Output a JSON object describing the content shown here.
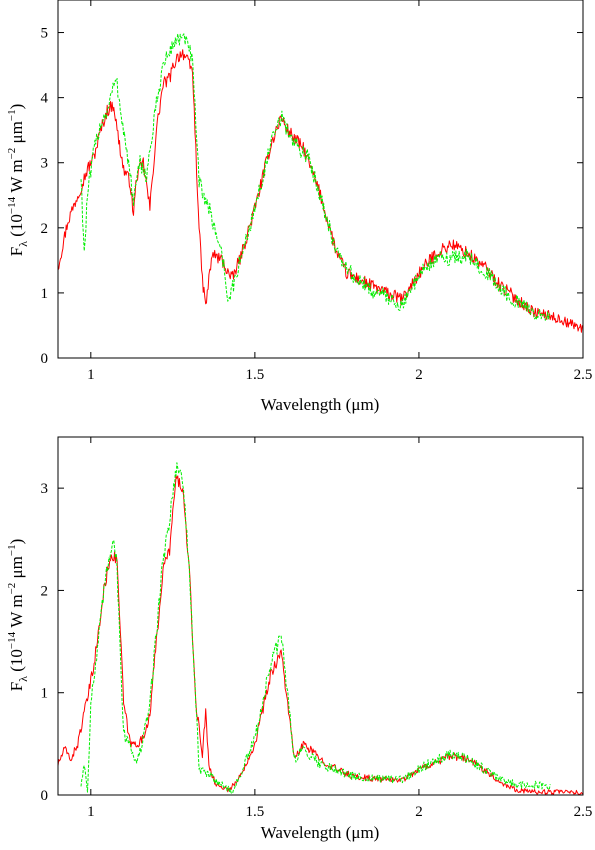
{
  "chart_data": [
    {
      "type": "line",
      "xlabel": "Wavelength (μm)",
      "ylabel_main": "F",
      "ylabel_sub": "λ",
      "ylabel_paren_open": " (10",
      "ylabel_exp1": "−14",
      "ylabel_mid": " W m",
      "ylabel_exp2": "−2",
      "ylabel_unit": " μm",
      "ylabel_exp3": "−1",
      "ylabel_paren_close": ")",
      "xlim": [
        0.9,
        2.5
      ],
      "ylim": [
        0,
        5.5
      ],
      "xticks": [
        1,
        1.5,
        2,
        2.5
      ],
      "xtick_labels": [
        "1",
        "1.5",
        "2",
        "2.5"
      ],
      "yticks": [
        0,
        1,
        2,
        3,
        4,
        5
      ],
      "ytick_labels": [
        "0",
        "1",
        "2",
        "3",
        "4",
        "5"
      ],
      "grid": false,
      "series": [
        {
          "color": "#ff0000",
          "style": "solid",
          "noise": 0.1,
          "x": [
            0.9,
            0.93,
            0.96,
            0.99,
            1.01,
            1.03,
            1.05,
            1.07,
            1.08,
            1.1,
            1.12,
            1.13,
            1.14,
            1.16,
            1.18,
            1.2,
            1.22,
            1.24,
            1.26,
            1.28,
            1.3,
            1.31,
            1.33,
            1.34,
            1.35,
            1.37,
            1.4,
            1.43,
            1.46,
            1.5,
            1.55,
            1.58,
            1.6,
            1.65,
            1.7,
            1.75,
            1.78,
            1.82,
            1.86,
            1.9,
            1.95,
            2.0,
            2.05,
            2.1,
            2.15,
            2.2,
            2.25,
            2.3,
            2.35,
            2.4,
            2.45,
            2.5
          ],
          "y": [
            1.4,
            2.1,
            2.5,
            2.9,
            3.1,
            3.5,
            3.8,
            3.9,
            3.5,
            2.9,
            2.7,
            2.2,
            2.8,
            3.0,
            2.3,
            3.5,
            4.2,
            4.3,
            4.6,
            4.7,
            4.5,
            4.4,
            2.0,
            1.2,
            0.8,
            1.6,
            1.5,
            1.2,
            1.6,
            2.3,
            3.3,
            3.7,
            3.5,
            3.2,
            2.5,
            1.6,
            1.3,
            1.2,
            1.1,
            1.0,
            0.9,
            1.3,
            1.6,
            1.75,
            1.6,
            1.4,
            1.1,
            0.9,
            0.7,
            0.65,
            0.55,
            0.45
          ]
        },
        {
          "color": "#00ee00",
          "style": "dashed",
          "noise": 0.12,
          "x": [
            0.97,
            0.98,
            0.99,
            1.01,
            1.03,
            1.05,
            1.07,
            1.08,
            1.1,
            1.12,
            1.13,
            1.15,
            1.17,
            1.2,
            1.22,
            1.24,
            1.26,
            1.28,
            1.3,
            1.31,
            1.33,
            1.36,
            1.4,
            1.42,
            1.45,
            1.5,
            1.55,
            1.58,
            1.62,
            1.66,
            1.7,
            1.75,
            1.8,
            1.85,
            1.9,
            1.95,
            2.0,
            2.05,
            2.1,
            2.15,
            2.2,
            2.25,
            2.3,
            2.35,
            2.4
          ],
          "y": [
            2.8,
            1.6,
            2.5,
            3.2,
            3.6,
            3.8,
            4.2,
            4.2,
            3.5,
            2.8,
            2.4,
            3.0,
            2.8,
            3.9,
            4.5,
            4.7,
            4.9,
            4.9,
            4.8,
            4.5,
            2.7,
            2.3,
            1.6,
            0.85,
            1.4,
            2.3,
            3.3,
            3.7,
            3.3,
            3.1,
            2.5,
            1.6,
            1.25,
            1.05,
            0.95,
            0.8,
            1.3,
            1.5,
            1.55,
            1.55,
            1.35,
            1.05,
            0.85,
            0.7,
            0.6
          ]
        }
      ]
    },
    {
      "type": "line",
      "xlabel": "Wavelength (μm)",
      "ylabel_main": "F",
      "ylabel_sub": "λ",
      "ylabel_paren_open": " (10",
      "ylabel_exp1": "−14",
      "ylabel_mid": " W m",
      "ylabel_exp2": "−2",
      "ylabel_unit": " μm",
      "ylabel_exp3": "−1",
      "ylabel_paren_close": ")",
      "xlim": [
        0.9,
        2.5
      ],
      "ylim": [
        0,
        3.5
      ],
      "xticks": [
        1,
        1.5,
        2,
        2.5
      ],
      "xtick_labels": [
        "1",
        "1.5",
        "2",
        "2.5"
      ],
      "yticks": [
        0,
        1,
        2,
        3
      ],
      "ytick_labels": [
        "0",
        "1",
        "2",
        "3"
      ],
      "grid": false,
      "series": [
        {
          "color": "#ff0000",
          "style": "solid",
          "noise": 0.06,
          "x": [
            0.9,
            0.92,
            0.94,
            0.96,
            0.98,
            1.0,
            1.02,
            1.04,
            1.06,
            1.08,
            1.1,
            1.12,
            1.14,
            1.16,
            1.18,
            1.2,
            1.22,
            1.24,
            1.26,
            1.28,
            1.3,
            1.32,
            1.34,
            1.35,
            1.36,
            1.38,
            1.4,
            1.42,
            1.45,
            1.5,
            1.55,
            1.58,
            1.6,
            1.62,
            1.65,
            1.7,
            1.75,
            1.8,
            1.9,
            1.95,
            2.0,
            2.05,
            2.1,
            2.15,
            2.2,
            2.25,
            2.3,
            2.35,
            2.4,
            2.5
          ],
          "y": [
            0.3,
            0.45,
            0.35,
            0.5,
            0.8,
            1.1,
            1.5,
            2.0,
            2.35,
            2.3,
            0.9,
            0.5,
            0.5,
            0.55,
            0.8,
            1.5,
            2.2,
            2.4,
            3.1,
            3.0,
            2.2,
            0.9,
            0.4,
            0.8,
            0.3,
            0.1,
            0.08,
            0.05,
            0.15,
            0.5,
            1.2,
            1.4,
            0.9,
            0.35,
            0.5,
            0.35,
            0.25,
            0.18,
            0.15,
            0.15,
            0.25,
            0.32,
            0.38,
            0.35,
            0.25,
            0.12,
            0.05,
            0.03,
            0.03,
            0.02
          ]
        },
        {
          "color": "#00ee00",
          "style": "dashed",
          "noise": 0.08,
          "x": [
            0.97,
            0.98,
            0.99,
            1.0,
            1.02,
            1.04,
            1.06,
            1.07,
            1.08,
            1.1,
            1.12,
            1.14,
            1.16,
            1.18,
            1.2,
            1.22,
            1.24,
            1.26,
            1.28,
            1.3,
            1.32,
            1.33,
            1.36,
            1.4,
            1.43,
            1.45,
            1.5,
            1.55,
            1.58,
            1.6,
            1.62,
            1.65,
            1.7,
            1.75,
            1.8,
            1.9,
            1.95,
            2.0,
            2.05,
            2.1,
            2.15,
            2.2,
            2.25,
            2.3,
            2.35,
            2.4
          ],
          "y": [
            0.1,
            0.3,
            0.05,
            0.9,
            1.4,
            2.0,
            2.4,
            2.55,
            2.2,
            0.6,
            0.5,
            0.3,
            0.55,
            0.9,
            1.6,
            2.3,
            2.7,
            3.2,
            3.1,
            2.2,
            0.9,
            0.25,
            0.2,
            0.1,
            0.03,
            0.15,
            0.55,
            1.3,
            1.55,
            1.0,
            0.35,
            0.45,
            0.3,
            0.25,
            0.18,
            0.15,
            0.15,
            0.25,
            0.35,
            0.4,
            0.35,
            0.25,
            0.15,
            0.1,
            0.1,
            0.08
          ]
        }
      ]
    }
  ]
}
